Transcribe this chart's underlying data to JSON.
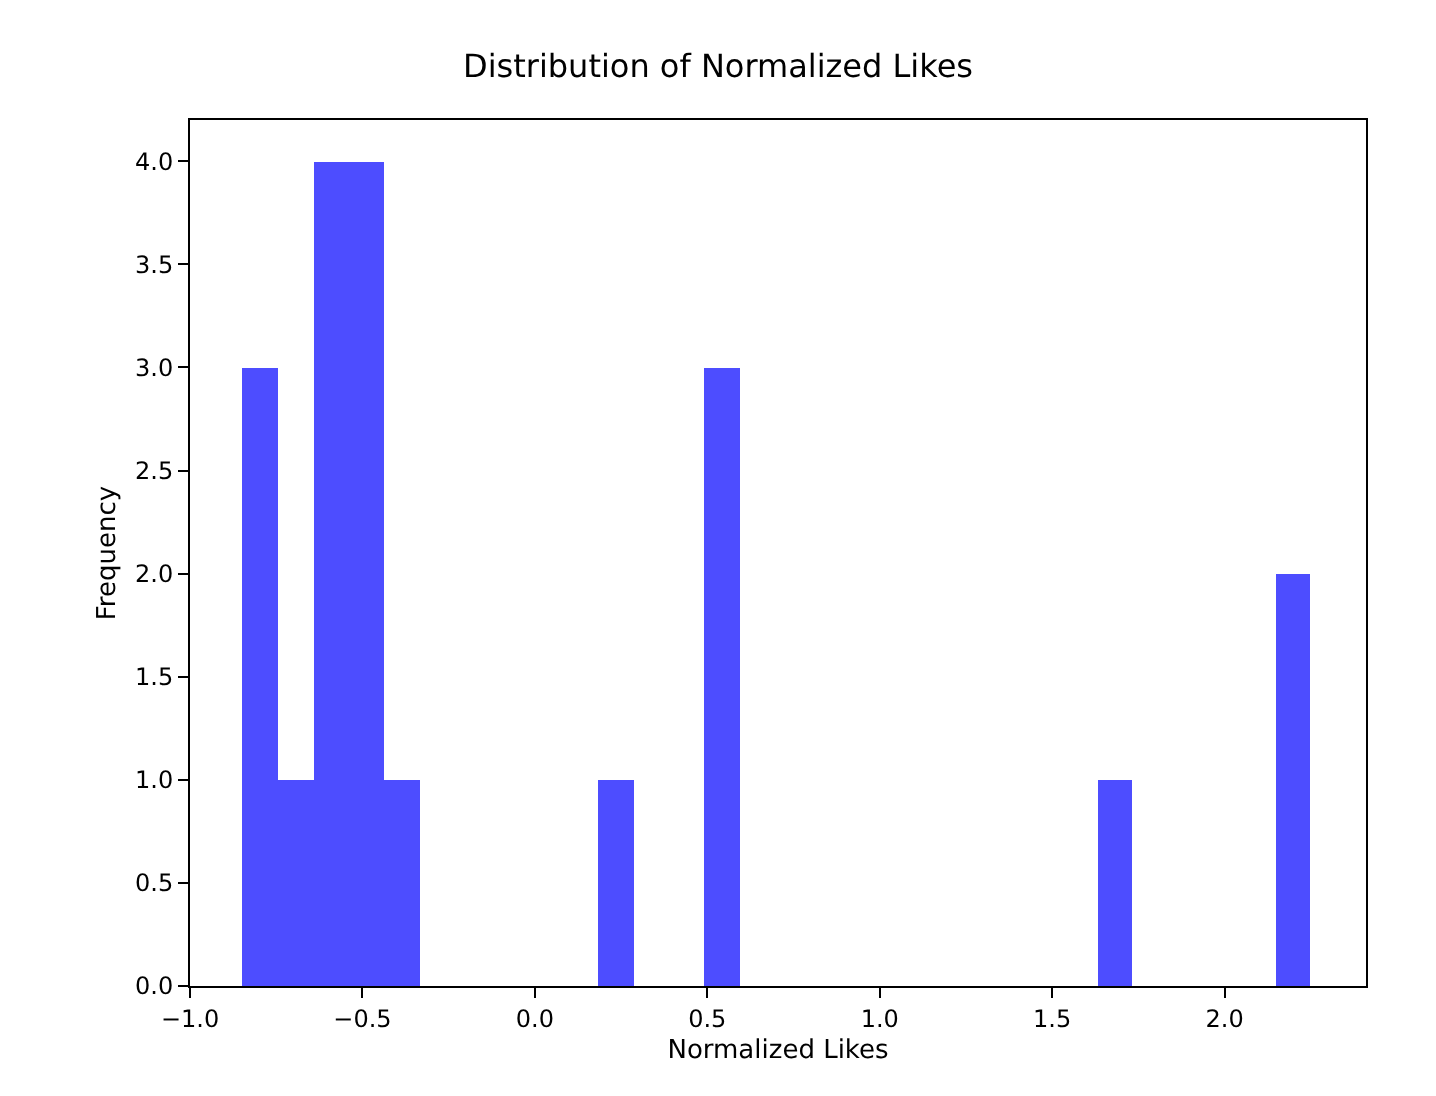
{
  "chart_data": {
    "type": "histogram",
    "title": "Distribution of Normalized Likes",
    "xlabel": "Normalized Likes",
    "ylabel": "Frequency",
    "bins": [
      -0.85,
      -0.747,
      -0.643,
      -0.54,
      -0.437,
      -0.333,
      -0.23,
      -0.127,
      -0.023,
      0.08,
      0.183,
      0.287,
      0.39,
      0.493,
      0.597,
      0.7,
      0.803,
      0.907,
      1.01,
      1.113,
      1.217,
      1.32,
      1.423,
      1.527,
      1.63,
      1.733,
      1.837,
      1.94,
      2.043,
      2.147,
      2.25
    ],
    "values": [
      3,
      1,
      4,
      4,
      1,
      0,
      0,
      0,
      0,
      0,
      1,
      0,
      0,
      3,
      0,
      0,
      0,
      0,
      0,
      0,
      0,
      0,
      0,
      0,
      1,
      0,
      0,
      0,
      0,
      2
    ],
    "color": "#4d4dff",
    "xlim": [
      -1.0,
      2.41
    ],
    "xticks": [
      {
        "value": -1.0,
        "label": "−1.0"
      },
      {
        "value": -0.5,
        "label": "−0.5"
      },
      {
        "value": 0.0,
        "label": "0.0"
      },
      {
        "value": 0.5,
        "label": "0.5"
      },
      {
        "value": 1.0,
        "label": "1.0"
      },
      {
        "value": 1.5,
        "label": "1.5"
      },
      {
        "value": 2.0,
        "label": "2.0"
      }
    ],
    "ylim": [
      0,
      4.2
    ],
    "yticks": [
      {
        "value": 0,
        "label": "0.0"
      },
      {
        "value": 0.5,
        "label": "0.5"
      },
      {
        "value": 1,
        "label": "1.0"
      },
      {
        "value": 1.5,
        "label": "1.5"
      },
      {
        "value": 2,
        "label": "2.0"
      },
      {
        "value": 2.5,
        "label": "2.5"
      },
      {
        "value": 3,
        "label": "3.0"
      },
      {
        "value": 3.5,
        "label": "3.5"
      },
      {
        "value": 4,
        "label": "4.0"
      }
    ]
  }
}
